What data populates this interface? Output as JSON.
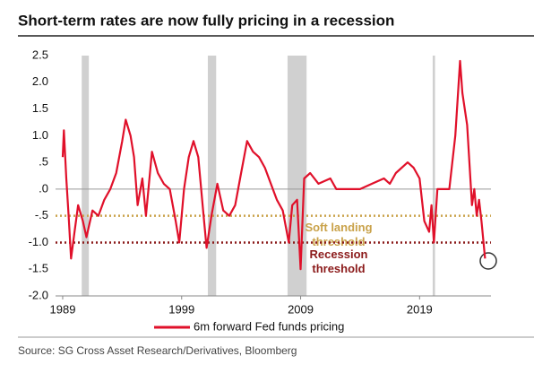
{
  "chart_data": {
    "type": "line",
    "title": "Short-term rates are now fully pricing in a recession",
    "source": "Source: SG Cross Asset Research/Derivatives, Bloomberg",
    "x": [
      1989.0,
      1989.1,
      1989.3,
      1989.5,
      1989.7,
      1990.0,
      1990.3,
      1990.7,
      1991.0,
      1991.5,
      1992.0,
      1992.5,
      1993.0,
      1993.5,
      1994.0,
      1994.3,
      1994.7,
      1995.0,
      1995.3,
      1995.7,
      1996.0,
      1996.5,
      1997.0,
      1997.5,
      1998.0,
      1998.5,
      1998.8,
      1999.2,
      1999.6,
      2000.0,
      2000.4,
      2000.8,
      2001.1,
      2001.5,
      2002.0,
      2002.5,
      2003.0,
      2003.5,
      2004.0,
      2004.5,
      2005.0,
      2005.5,
      2006.0,
      2006.5,
      2007.0,
      2007.5,
      2008.0,
      2008.3,
      2008.7,
      2009.0,
      2009.3,
      2009.8,
      2010.5,
      2011.5,
      2012.0,
      2013.0,
      2014.0,
      2015.0,
      2016.0,
      2016.5,
      2017.0,
      2018.0,
      2018.5,
      2019.0,
      2019.4,
      2019.8,
      2020.0,
      2020.2,
      2020.5,
      2021.0,
      2021.5,
      2022.0,
      2022.4,
      2022.6,
      2023.0,
      2023.4,
      2023.6,
      2023.8,
      2024.0,
      2024.2,
      2024.5
    ],
    "series": [
      {
        "name": "6m forward Fed funds pricing",
        "color": "#e0102a",
        "values": [
          0.6,
          1.1,
          0.2,
          -0.5,
          -1.3,
          -0.8,
          -0.3,
          -0.6,
          -0.9,
          -0.4,
          -0.5,
          -0.2,
          0.0,
          0.3,
          0.9,
          1.3,
          1.0,
          0.6,
          -0.3,
          0.2,
          -0.5,
          0.7,
          0.3,
          0.1,
          0.0,
          -0.6,
          -1.0,
          0.0,
          0.6,
          0.9,
          0.6,
          -0.4,
          -1.1,
          -0.5,
          0.1,
          -0.4,
          -0.5,
          -0.3,
          0.3,
          0.9,
          0.7,
          0.6,
          0.4,
          0.1,
          -0.2,
          -0.4,
          -1.0,
          -0.3,
          -0.2,
          -1.5,
          0.2,
          0.3,
          0.1,
          0.2,
          0.0,
          0.0,
          0.0,
          0.1,
          0.2,
          0.1,
          0.3,
          0.5,
          0.4,
          0.2,
          -0.6,
          -0.8,
          -0.3,
          -1.0,
          0.0,
          0.0,
          0.0,
          1.0,
          2.4,
          1.8,
          1.2,
          -0.3,
          0.0,
          -0.5,
          -0.2,
          -0.6,
          -1.3
        ]
      }
    ],
    "recession_periods": [
      [
        1990.6,
        1991.2
      ],
      [
        2001.2,
        2001.9
      ],
      [
        2007.9,
        2009.5
      ],
      [
        2020.1,
        2020.3
      ]
    ],
    "thresholds": [
      {
        "value": -0.5,
        "color": "#c9a24a",
        "label": [
          "Soft landing",
          "threshold"
        ]
      },
      {
        "value": -1.0,
        "color": "#8b1a1a",
        "label": [
          "Recession",
          "threshold"
        ]
      }
    ],
    "xlim": [
      1988.4,
      2025.0
    ],
    "xticks": [
      1989,
      1999,
      2009,
      2019
    ],
    "ylim": [
      -2.0,
      2.5
    ],
    "yticks": [
      2.5,
      {
        "value": 2,
        "label": "2.0"
      },
      1.5,
      {
        "value": 1,
        "label": "1.0"
      },
      {
        "value": 0.5,
        "label": ".5"
      },
      {
        "value": 0,
        "label": ".0"
      },
      {
        "value": -0.5,
        "label": "-.5"
      },
      {
        "value": -1,
        "label": "-1.0"
      },
      {
        "value": -1.5,
        "label": "-1.5"
      },
      {
        "value": -2,
        "label": "-2.0"
      }
    ]
  }
}
